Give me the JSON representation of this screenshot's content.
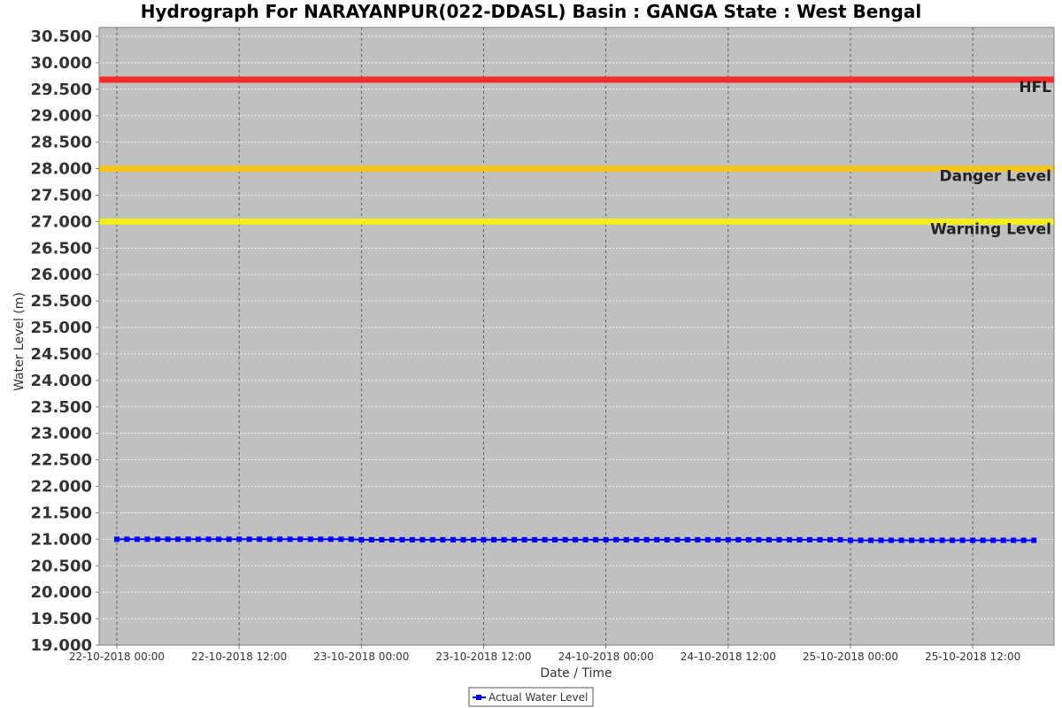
{
  "chart_data": {
    "type": "line",
    "title": "Hydrograph For NARAYANPUR(022-DDASL) Basin : GANGA State : West Bengal",
    "xlabel": "Date / Time",
    "ylabel": "Water Level (m)",
    "ylim": [
      19.0,
      30.5
    ],
    "y_ticks": [
      "19.000",
      "19.500",
      "20.000",
      "20.500",
      "21.000",
      "21.500",
      "22.000",
      "22.500",
      "23.000",
      "23.500",
      "24.000",
      "24.500",
      "25.000",
      "25.500",
      "26.000",
      "26.500",
      "27.000",
      "27.500",
      "28.000",
      "28.500",
      "29.000",
      "29.500",
      "30.000",
      "30.500"
    ],
    "x_ticks": [
      "22-10-2018 00:00",
      "22-10-2018 12:00",
      "23-10-2018 00:00",
      "23-10-2018 12:00",
      "24-10-2018 00:00",
      "24-10-2018 12:00",
      "25-10-2018 00:00",
      "25-10-2018 12:00"
    ],
    "x_range": [
      "22-10-2018 00:00",
      "25-10-2018 18:30"
    ],
    "grid": true,
    "reference_lines": [
      {
        "name": "HFL",
        "value": 29.68,
        "color": "#ff2a2a"
      },
      {
        "name": "Danger Level",
        "value": 28.0,
        "color": "#f5c518"
      },
      {
        "name": "Warning Level",
        "value": 27.0,
        "color": "#f2ef1a"
      }
    ],
    "series": [
      {
        "name": "Actual Water Level",
        "color": "#0000ff",
        "start": "22-10-2018 00:00",
        "end": "25-10-2018 17:00",
        "interval_hours": 1,
        "values": [
          21.0,
          21.0,
          21.0,
          21.0,
          21.0,
          21.0,
          21.0,
          21.0,
          21.0,
          21.0,
          21.0,
          21.0,
          21.0,
          21.0,
          21.0,
          21.0,
          21.0,
          21.0,
          21.0,
          21.0,
          21.0,
          21.0,
          21.0,
          21.0,
          20.99,
          20.99,
          20.99,
          20.99,
          20.99,
          20.99,
          20.99,
          20.99,
          20.99,
          20.99,
          20.99,
          20.99,
          20.99,
          20.99,
          20.99,
          20.99,
          20.99,
          20.99,
          20.99,
          20.99,
          20.99,
          20.99,
          20.99,
          20.99,
          20.99,
          20.99,
          20.99,
          20.99,
          20.99,
          20.99,
          20.99,
          20.99,
          20.99,
          20.99,
          20.99,
          20.99,
          20.99,
          20.99,
          20.99,
          20.99,
          20.99,
          20.99,
          20.99,
          20.99,
          20.99,
          20.99,
          20.99,
          20.99,
          20.98,
          20.98,
          20.98,
          20.98,
          20.98,
          20.98,
          20.98,
          20.98,
          20.98,
          20.98,
          20.98,
          20.98,
          20.98,
          20.98,
          20.98,
          20.98,
          20.98,
          20.98,
          20.98
        ]
      }
    ],
    "legend": "bottom-center"
  }
}
